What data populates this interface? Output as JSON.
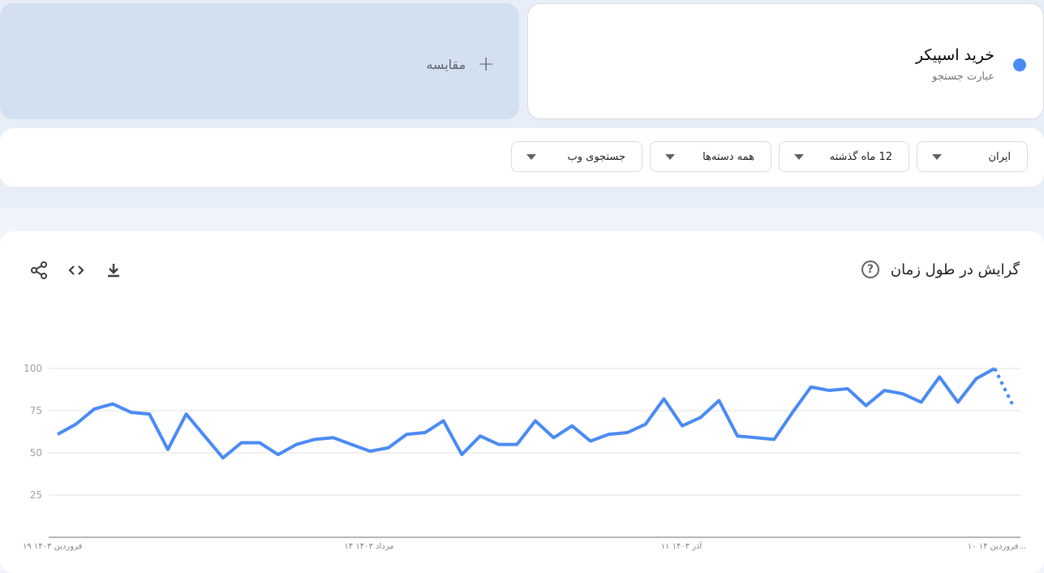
{
  "term": {
    "name": "خرید اسپیکر",
    "subtitle": "عبارت جستجو",
    "color": "#4a8af4"
  },
  "compare": {
    "label": "مقایسه",
    "icon": "plus-icon"
  },
  "filters": [
    {
      "label": "ایران"
    },
    {
      "label": "12 ماه گذشته"
    },
    {
      "label": "همه دسته‌ها"
    },
    {
      "label": "جستجوی وب"
    }
  ],
  "chart_section": {
    "title": "گرایش در طول زمان",
    "help_icon": "help-icon",
    "actions": [
      "download-icon",
      "embed-icon",
      "share-icon"
    ]
  },
  "chart_data": {
    "type": "line",
    "ylim": [
      0,
      100
    ],
    "yticks": [
      25,
      50,
      75,
      100
    ],
    "grid": true,
    "color": "#4a8af4",
    "x_tick_labels": [
      {
        "index": 0,
        "label": "۱۹ فروردین ۱۴۰۳"
      },
      {
        "index": 17,
        "label": "۱۴ مرداد ۱۴۰۳"
      },
      {
        "index": 34,
        "label": "۱۱ آذر ۱۴۰۳"
      },
      {
        "index": 51,
        "label": "۱۰ فروردین ۱۴..."
      }
    ],
    "values": [
      61,
      67,
      76,
      79,
      74,
      73,
      52,
      73,
      60,
      47,
      56,
      56,
      49,
      55,
      58,
      59,
      55,
      51,
      53,
      61,
      62,
      69,
      49,
      60,
      55,
      55,
      69,
      59,
      66,
      57,
      61,
      62,
      67,
      82,
      66,
      71,
      81,
      60,
      59,
      58,
      74,
      89,
      87,
      88,
      78,
      87,
      85,
      80,
      95,
      80,
      94,
      100,
      78
    ],
    "partial_last_point": true
  }
}
